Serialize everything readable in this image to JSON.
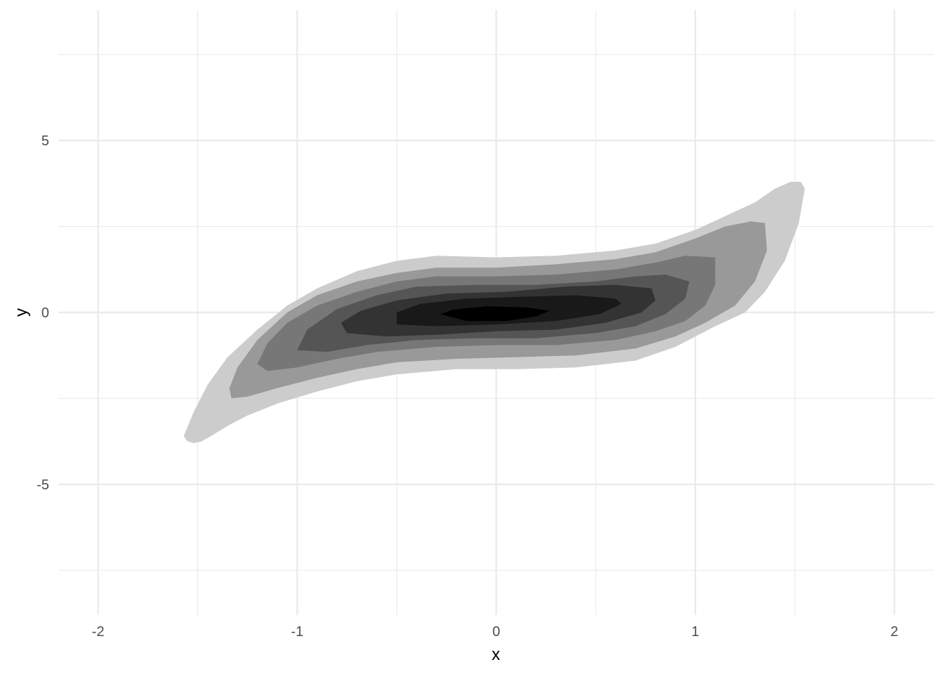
{
  "chart_data": {
    "type": "area",
    "subtype": "filled-density-contour",
    "title": "",
    "xlabel": "x",
    "ylabel": "y",
    "xlim": [
      -2.2,
      2.2
    ],
    "ylim": [
      -8.8,
      8.8
    ],
    "x_ticks": [
      -2,
      -1,
      0,
      1,
      2
    ],
    "x_tick_labels": [
      "-2",
      "-1",
      "0",
      "1",
      "2"
    ],
    "y_ticks": [
      -5,
      0,
      5
    ],
    "y_tick_labels": [
      "-5",
      "0",
      "5"
    ],
    "minor_x": [
      -1.5,
      -0.5,
      0.5,
      1.5
    ],
    "minor_y": [
      -7.5,
      -2.5,
      2.5,
      7.5
    ],
    "grid": true,
    "legend": "none",
    "theme": "minimal",
    "colors": {
      "grid": "#ebebeb",
      "levels": [
        "#cccccc",
        "#999999",
        "#777777",
        "#555555",
        "#333333",
        "#191919",
        "#000000"
      ]
    },
    "contour_levels": [
      {
        "level": 1,
        "color": "#cccccc",
        "points": [
          [
            -1.55,
            -3.75
          ],
          [
            -1.52,
            -3.8
          ],
          [
            -1.48,
            -3.75
          ],
          [
            -1.42,
            -3.55
          ],
          [
            -1.35,
            -3.3
          ],
          [
            -1.25,
            -3.0
          ],
          [
            -1.1,
            -2.65
          ],
          [
            -0.9,
            -2.3
          ],
          [
            -0.7,
            -2.0
          ],
          [
            -0.5,
            -1.8
          ],
          [
            -0.2,
            -1.65
          ],
          [
            0.1,
            -1.65
          ],
          [
            0.4,
            -1.6
          ],
          [
            0.7,
            -1.4
          ],
          [
            0.9,
            -1.0
          ],
          [
            1.1,
            -0.4
          ],
          [
            1.25,
            0.0
          ],
          [
            1.35,
            0.6
          ],
          [
            1.45,
            1.5
          ],
          [
            1.52,
            2.6
          ],
          [
            1.55,
            3.6
          ],
          [
            1.53,
            3.8
          ],
          [
            1.48,
            3.8
          ],
          [
            1.4,
            3.6
          ],
          [
            1.3,
            3.2
          ],
          [
            1.15,
            2.8
          ],
          [
            1.0,
            2.4
          ],
          [
            0.8,
            2.0
          ],
          [
            0.6,
            1.8
          ],
          [
            0.3,
            1.65
          ],
          [
            0.0,
            1.6
          ],
          [
            -0.3,
            1.65
          ],
          [
            -0.5,
            1.5
          ],
          [
            -0.7,
            1.2
          ],
          [
            -0.9,
            0.7
          ],
          [
            -1.05,
            0.2
          ],
          [
            -1.2,
            -0.5
          ],
          [
            -1.35,
            -1.3
          ],
          [
            -1.45,
            -2.1
          ],
          [
            -1.52,
            -2.9
          ],
          [
            -1.57,
            -3.6
          ]
        ]
      },
      {
        "level": 2,
        "color": "#999999",
        "points": [
          [
            -1.33,
            -2.5
          ],
          [
            -1.25,
            -2.45
          ],
          [
            -1.1,
            -2.2
          ],
          [
            -0.9,
            -1.9
          ],
          [
            -0.7,
            -1.65
          ],
          [
            -0.5,
            -1.45
          ],
          [
            -0.2,
            -1.35
          ],
          [
            0.1,
            -1.3
          ],
          [
            0.4,
            -1.25
          ],
          [
            0.7,
            -1.05
          ],
          [
            0.9,
            -0.7
          ],
          [
            1.05,
            -0.3
          ],
          [
            1.2,
            0.2
          ],
          [
            1.3,
            0.9
          ],
          [
            1.36,
            1.8
          ],
          [
            1.35,
            2.6
          ],
          [
            1.28,
            2.65
          ],
          [
            1.15,
            2.5
          ],
          [
            1.0,
            2.15
          ],
          [
            0.8,
            1.75
          ],
          [
            0.6,
            1.55
          ],
          [
            0.3,
            1.4
          ],
          [
            0.0,
            1.3
          ],
          [
            -0.3,
            1.3
          ],
          [
            -0.5,
            1.15
          ],
          [
            -0.7,
            0.9
          ],
          [
            -0.9,
            0.5
          ],
          [
            -1.05,
            0.0
          ],
          [
            -1.2,
            -0.8
          ],
          [
            -1.3,
            -1.6
          ],
          [
            -1.34,
            -2.2
          ]
        ]
      },
      {
        "level": 3,
        "color": "#777777",
        "points": [
          [
            -1.15,
            -1.7
          ],
          [
            -1.0,
            -1.6
          ],
          [
            -0.8,
            -1.35
          ],
          [
            -0.6,
            -1.15
          ],
          [
            -0.3,
            -1.0
          ],
          [
            0.0,
            -0.95
          ],
          [
            0.3,
            -0.95
          ],
          [
            0.6,
            -0.8
          ],
          [
            0.8,
            -0.55
          ],
          [
            0.95,
            -0.25
          ],
          [
            1.05,
            0.2
          ],
          [
            1.1,
            0.8
          ],
          [
            1.1,
            1.6
          ],
          [
            0.95,
            1.65
          ],
          [
            0.8,
            1.45
          ],
          [
            0.6,
            1.25
          ],
          [
            0.3,
            1.1
          ],
          [
            0.0,
            1.05
          ],
          [
            -0.3,
            1.05
          ],
          [
            -0.5,
            0.9
          ],
          [
            -0.7,
            0.6
          ],
          [
            -0.9,
            0.2
          ],
          [
            -1.05,
            -0.3
          ],
          [
            -1.15,
            -0.9
          ],
          [
            -1.2,
            -1.5
          ]
        ]
      },
      {
        "level": 4,
        "color": "#555555",
        "points": [
          [
            -1.0,
            -1.1
          ],
          [
            -0.85,
            -1.15
          ],
          [
            -0.65,
            -0.95
          ],
          [
            -0.4,
            -0.8
          ],
          [
            -0.1,
            -0.75
          ],
          [
            0.2,
            -0.75
          ],
          [
            0.5,
            -0.6
          ],
          [
            0.7,
            -0.4
          ],
          [
            0.85,
            -0.05
          ],
          [
            0.95,
            0.4
          ],
          [
            0.97,
            0.9
          ],
          [
            0.85,
            1.1
          ],
          [
            0.7,
            1.05
          ],
          [
            0.5,
            0.9
          ],
          [
            0.2,
            0.8
          ],
          [
            -0.1,
            0.8
          ],
          [
            -0.4,
            0.75
          ],
          [
            -0.6,
            0.5
          ],
          [
            -0.8,
            0.1
          ],
          [
            -0.95,
            -0.5
          ]
        ]
      },
      {
        "level": 5,
        "color": "#333333",
        "points": [
          [
            -0.75,
            -0.6
          ],
          [
            -0.55,
            -0.7
          ],
          [
            -0.3,
            -0.65
          ],
          [
            0.0,
            -0.55
          ],
          [
            0.3,
            -0.5
          ],
          [
            0.55,
            -0.3
          ],
          [
            0.73,
            0.0
          ],
          [
            0.8,
            0.35
          ],
          [
            0.78,
            0.7
          ],
          [
            0.6,
            0.8
          ],
          [
            0.35,
            0.75
          ],
          [
            0.05,
            0.6
          ],
          [
            -0.25,
            0.55
          ],
          [
            -0.5,
            0.35
          ],
          [
            -0.68,
            0.05
          ],
          [
            -0.78,
            -0.3
          ]
        ]
      },
      {
        "level": 6,
        "color": "#191919",
        "points": [
          [
            -0.5,
            -0.35
          ],
          [
            -0.3,
            -0.4
          ],
          [
            0.0,
            -0.35
          ],
          [
            0.3,
            -0.25
          ],
          [
            0.52,
            -0.05
          ],
          [
            0.63,
            0.25
          ],
          [
            0.6,
            0.4
          ],
          [
            0.4,
            0.5
          ],
          [
            0.1,
            0.45
          ],
          [
            -0.15,
            0.4
          ],
          [
            -0.38,
            0.25
          ],
          [
            -0.5,
            0.0
          ]
        ]
      },
      {
        "level": 7,
        "color": "#000000",
        "points": [
          [
            -0.28,
            -0.05
          ],
          [
            -0.15,
            -0.25
          ],
          [
            0.05,
            -0.25
          ],
          [
            0.2,
            -0.12
          ],
          [
            0.27,
            0.05
          ],
          [
            0.15,
            0.15
          ],
          [
            -0.05,
            0.18
          ],
          [
            -0.22,
            0.08
          ]
        ]
      }
    ]
  }
}
